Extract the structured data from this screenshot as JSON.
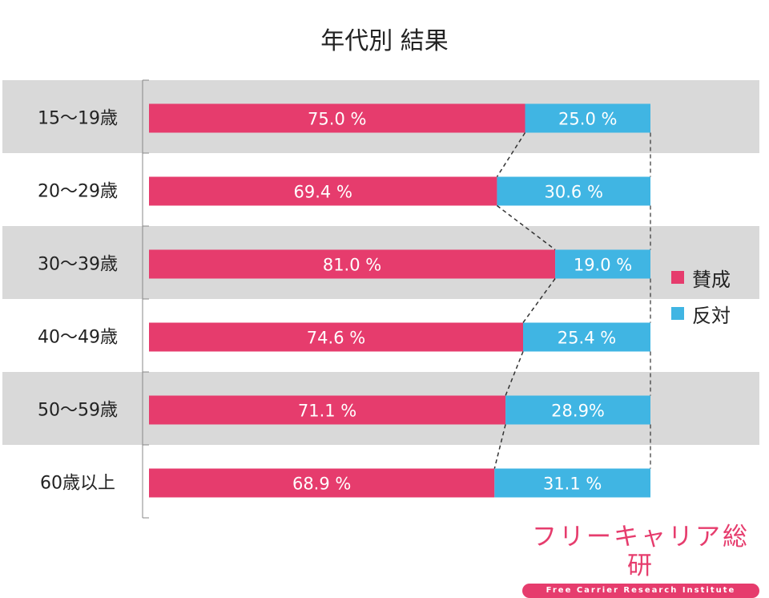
{
  "title": "年代別 結果",
  "colors": {
    "agree": "#e63c6d",
    "disagree": "#40b5e3",
    "band": "#d9d9d9"
  },
  "chart_data": {
    "type": "bar",
    "orientation": "horizontal",
    "stacked": true,
    "title": "年代別 結果",
    "categories": [
      "15～19歳",
      "20～29歳",
      "30～39歳",
      "40～49歳",
      "50～59歳",
      "60歳以上"
    ],
    "series": [
      {
        "name": "賛成",
        "values": [
          75.0,
          69.4,
          81.0,
          74.6,
          71.1,
          68.9
        ],
        "labels": [
          "75.0 %",
          "69.4 %",
          "81.0 %",
          "74.6 %",
          "71.1 %",
          "68.9 %"
        ]
      },
      {
        "name": "反対",
        "values": [
          25.0,
          30.6,
          19.0,
          25.4,
          28.9,
          31.1
        ],
        "labels": [
          "25.0 %",
          "30.6 %",
          "19.0 %",
          "25.4 %",
          "28.9%",
          "31.1 %"
        ]
      }
    ],
    "xlim": [
      0,
      100
    ],
    "legend": [
      "賛成",
      "反対"
    ],
    "legend_position": "right"
  },
  "logo": {
    "name": "フリーキャリア総研",
    "tagline": "Free Carrier Research Institute"
  }
}
